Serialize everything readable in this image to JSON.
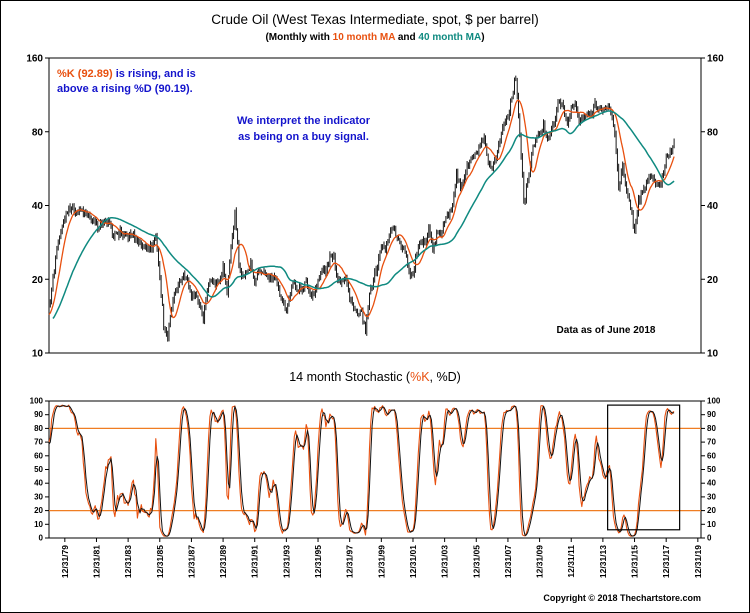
{
  "header": {
    "title": "Crude Oil (West Texas Intermediate, spot, $ per barrel)",
    "subtitle": {
      "prefix": "(Monthly with ",
      "ma10": "10 month MA",
      "middle": " and ",
      "ma40": "40 month MA",
      "suffix": ")"
    }
  },
  "annotations": {
    "stoch_note": {
      "k_part": "%K (92.89)",
      "line1_rest": " is rising, and is",
      "line2": "above a rising %D (90.19)."
    },
    "buy_signal": {
      "line1": "We interpret the indicator",
      "line2": "as being on a buy signal."
    },
    "data_as_of": "Data as of June 2018",
    "copyright": "Copyright © 2018 Thechartstore.com"
  },
  "stoch_header": {
    "prefix": "14 month Stochastic (",
    "k": "%K",
    "suffix": ", %D)"
  },
  "colors": {
    "price": "#000000",
    "ma10": "#e8500f",
    "ma40": "#0f8a80",
    "note_blue": "#1414cc",
    "stoch_k": "#e8500f",
    "stoch_d": "#111111",
    "ref_line": "#ef7d22",
    "box": "#000000"
  },
  "chart_data": [
    {
      "type": "line",
      "title": "Crude Oil (West Texas Intermediate, spot, $ per barrel)",
      "subtitle": "(Monthly with 10 month MA and 40 month MA)",
      "y_scale": "log",
      "ylim": [
        10,
        160
      ],
      "y_ticks": [
        160,
        80,
        40,
        20,
        10
      ],
      "x_range": [
        1979.0,
        2020.2
      ],
      "x_ticks": [
        {
          "t": 1980,
          "label": "12/31/79"
        },
        {
          "t": 1982,
          "label": "12/31/81"
        },
        {
          "t": 1984,
          "label": "12/31/83"
        },
        {
          "t": 1986,
          "label": "12/31/85"
        },
        {
          "t": 1988,
          "label": "12/31/87"
        },
        {
          "t": 1990,
          "label": "12/31/89"
        },
        {
          "t": 1992,
          "label": "12/31/91"
        },
        {
          "t": 1994,
          "label": "12/31/93"
        },
        {
          "t": 1996,
          "label": "12/31/95"
        },
        {
          "t": 1998,
          "label": "12/31/97"
        },
        {
          "t": 2000,
          "label": "12/31/99"
        },
        {
          "t": 2002,
          "label": "12/31/01"
        },
        {
          "t": 2004,
          "label": "12/31/03"
        },
        {
          "t": 2006,
          "label": "12/31/05"
        },
        {
          "t": 2008,
          "label": "12/31/07"
        },
        {
          "t": 2010,
          "label": "12/31/09"
        },
        {
          "t": 2012,
          "label": "12/31/11"
        },
        {
          "t": 2014,
          "label": "12/31/13"
        },
        {
          "t": 2016,
          "label": "12/31/15"
        },
        {
          "t": 2018,
          "label": "12/31/17"
        },
        {
          "t": 2020,
          "label": "12/31/19"
        }
      ],
      "series": [
        {
          "name": "WTI spot monthly (high-low bars)",
          "style": "bars",
          "color": "#000000",
          "x_start": 1976.0,
          "x_step": 0.25,
          "display_from": 1979.0,
          "note": "quarterly anchor values in $/bbl; monthly bars interpolated between anchors",
          "values": [
            12,
            12.2,
            12.5,
            12.8,
            13,
            13.2,
            13.5,
            13.8,
            14,
            14.1,
            14.3,
            14.6,
            15,
            20,
            27,
            31,
            36,
            39.5,
            39,
            38,
            38,
            37,
            36,
            35,
            33,
            33.5,
            34,
            34,
            31,
            30,
            31.5,
            30,
            30,
            30.5,
            29,
            28.5,
            27,
            27.5,
            27,
            30,
            20,
            13,
            11.5,
            15,
            18,
            19,
            21.5,
            19.5,
            17,
            17.5,
            16,
            14,
            18,
            20.5,
            19,
            20,
            22.5,
            17.5,
            27,
            37,
            23,
            20.5,
            21.5,
            23,
            19,
            21,
            21.8,
            20.5,
            20,
            20.3,
            18,
            16.5,
            15,
            17.5,
            19.5,
            18,
            18.3,
            19.5,
            17.5,
            17.5,
            19.5,
            22,
            21.5,
            24.5,
            24.5,
            20,
            19.8,
            21,
            16.5,
            15.5,
            14.2,
            14.5,
            12,
            17,
            20.5,
            22.5,
            27.5,
            26,
            30.5,
            33,
            29,
            27.5,
            26.5,
            21.5,
            20.5,
            26,
            27.5,
            28.5,
            33,
            26,
            30.5,
            30.5,
            34,
            37,
            41.5,
            53,
            47,
            53,
            59.5,
            62,
            64.5,
            70,
            74,
            59,
            54.5,
            64,
            74,
            86,
            93,
            112,
            133,
            77,
            40,
            50,
            64.5,
            75.5,
            78,
            84.5,
            76.5,
            81.5,
            89.5,
            110,
            97,
            86.5,
            100,
            103,
            88,
            89.5,
            94.5,
            93,
            105,
            100.5,
            95,
            103,
            97,
            78,
            48,
            57,
            45,
            40,
            31,
            42,
            44.5,
            49.5,
            52.5,
            51,
            47,
            51.5,
            63.5,
            66.5,
            74
          ]
        },
        {
          "name": "10 month MA",
          "style": "line",
          "derived": "sma",
          "window": 10,
          "color": "#e8500f"
        },
        {
          "name": "40 month MA",
          "style": "line",
          "derived": "sma",
          "window": 40,
          "color": "#0f8a80"
        }
      ]
    },
    {
      "type": "line",
      "title": "14 month Stochastic (%K, %D)",
      "ylim": [
        0,
        100
      ],
      "y_ticks": [
        0,
        10,
        20,
        30,
        40,
        50,
        60,
        70,
        80,
        90,
        100
      ],
      "ref_lines": [
        20,
        80
      ],
      "latest": {
        "k": 92.89,
        "d": 90.19
      },
      "series": [
        {
          "name": "%K",
          "derived": "stoch_k",
          "window": 14,
          "smooth": 3,
          "color": "#e8500f"
        },
        {
          "name": "%D",
          "derived": "stoch_d",
          "window": 14,
          "smooth": 3,
          "color": "#111111"
        }
      ],
      "highlight_box": {
        "x0": 2014.3,
        "x1": 2018.85,
        "y0": 6,
        "y1": 97
      }
    }
  ]
}
